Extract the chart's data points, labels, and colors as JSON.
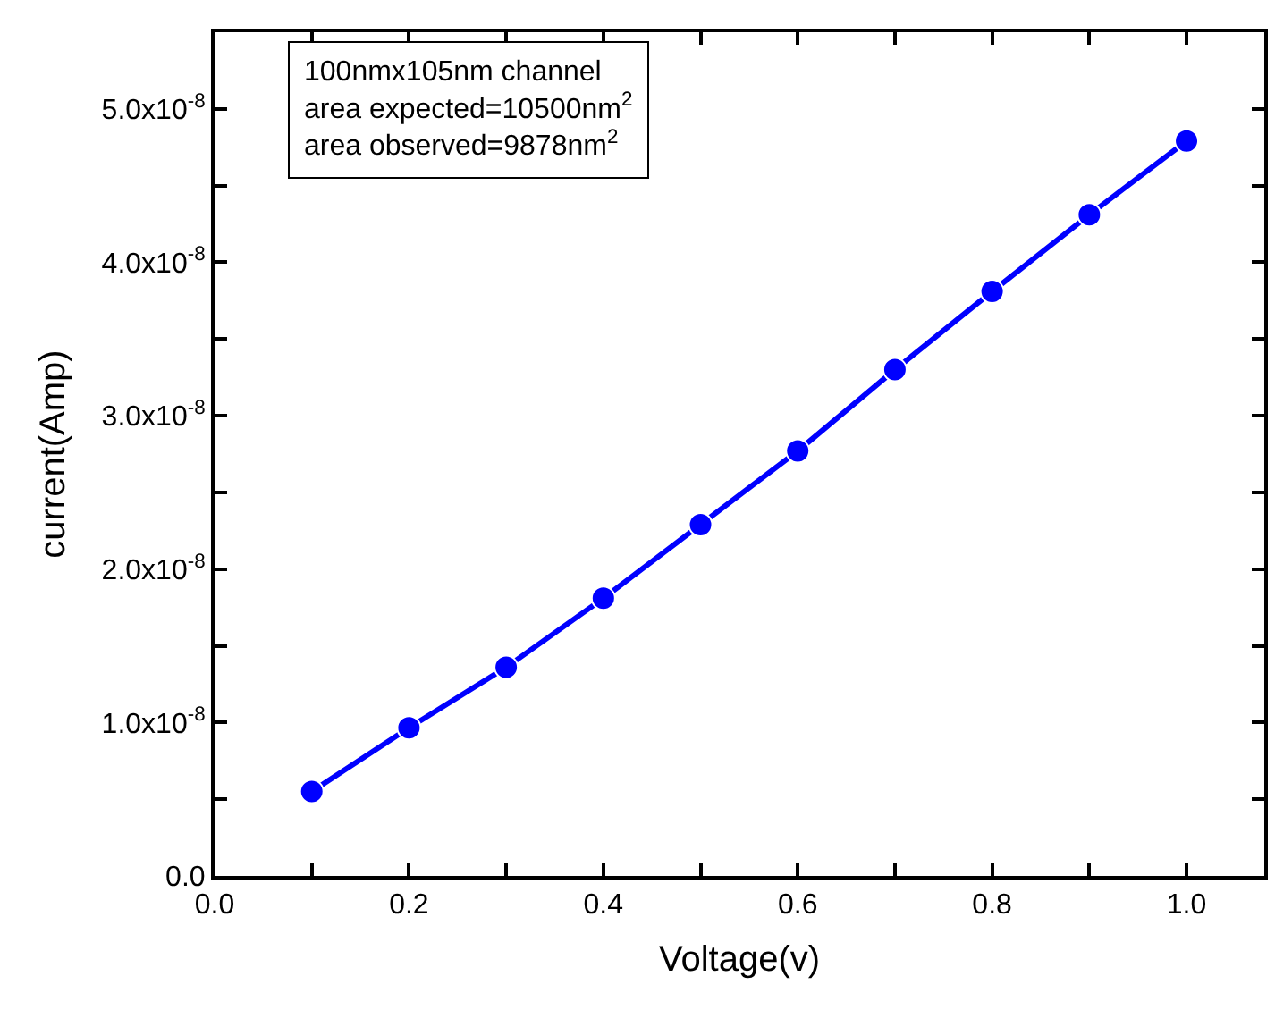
{
  "chart_data": {
    "type": "line",
    "xlabel": "Voltage(v)",
    "ylabel": "current(Amp)",
    "annotations": [
      "100nmx105nm channel\narea expected=10500nm$^{2}$\narea observed=9878nm$^{2}$"
    ],
    "x": [
      0.1,
      0.2,
      0.3,
      0.4,
      0.5,
      0.6,
      0.7,
      0.8,
      0.9,
      1.0
    ],
    "series": [
      {
        "color": "#0000ff",
        "values": [
          5.5e-09,
          9.66e-09,
          1.36e-08,
          1.81e-08,
          2.29e-08,
          2.77e-08,
          3.3e-08,
          3.81e-08,
          4.31e-08,
          4.79e-08
        ]
      }
    ],
    "xlim": [
      0,
      1.08
    ],
    "ylim": [
      0,
      5.5e-08
    ],
    "xticks": [
      {
        "value": 0,
        "label": "0.0"
      },
      {
        "value": 0.1,
        "label": null
      },
      0.2,
      {
        "value": 0.3,
        "label": null
      },
      0.4,
      {
        "value": 0.5,
        "label": null
      },
      0.6,
      {
        "value": 0.7,
        "label": null
      },
      0.8,
      {
        "value": 0.9,
        "label": null
      },
      {
        "value": 1,
        "label": "1.0"
      }
    ],
    "yticks": [
      {
        "value": 0,
        "label": "0.0"
      },
      {
        "value": 5e-09,
        "label": null
      },
      {
        "value": 1e-08,
        "label": "1.0x10$^{-8}$"
      },
      {
        "value": 1.5e-08,
        "label": null
      },
      {
        "value": 2e-08,
        "label": "2.0x10$^{-8}$"
      },
      {
        "value": 2.5e-08,
        "label": null
      },
      {
        "value": 3e-08,
        "label": "3.0x10$^{-8}$"
      },
      {
        "value": 3.5e-08,
        "label": null
      },
      {
        "value": 4e-08,
        "label": "4.0x10$^{-8}$"
      },
      {
        "value": 4.5e-08,
        "label": null
      },
      {
        "value": 5e-08,
        "label": "5.0x10$^{-8}$"
      }
    ],
    "marker": "circle",
    "line_style": "solid"
  }
}
